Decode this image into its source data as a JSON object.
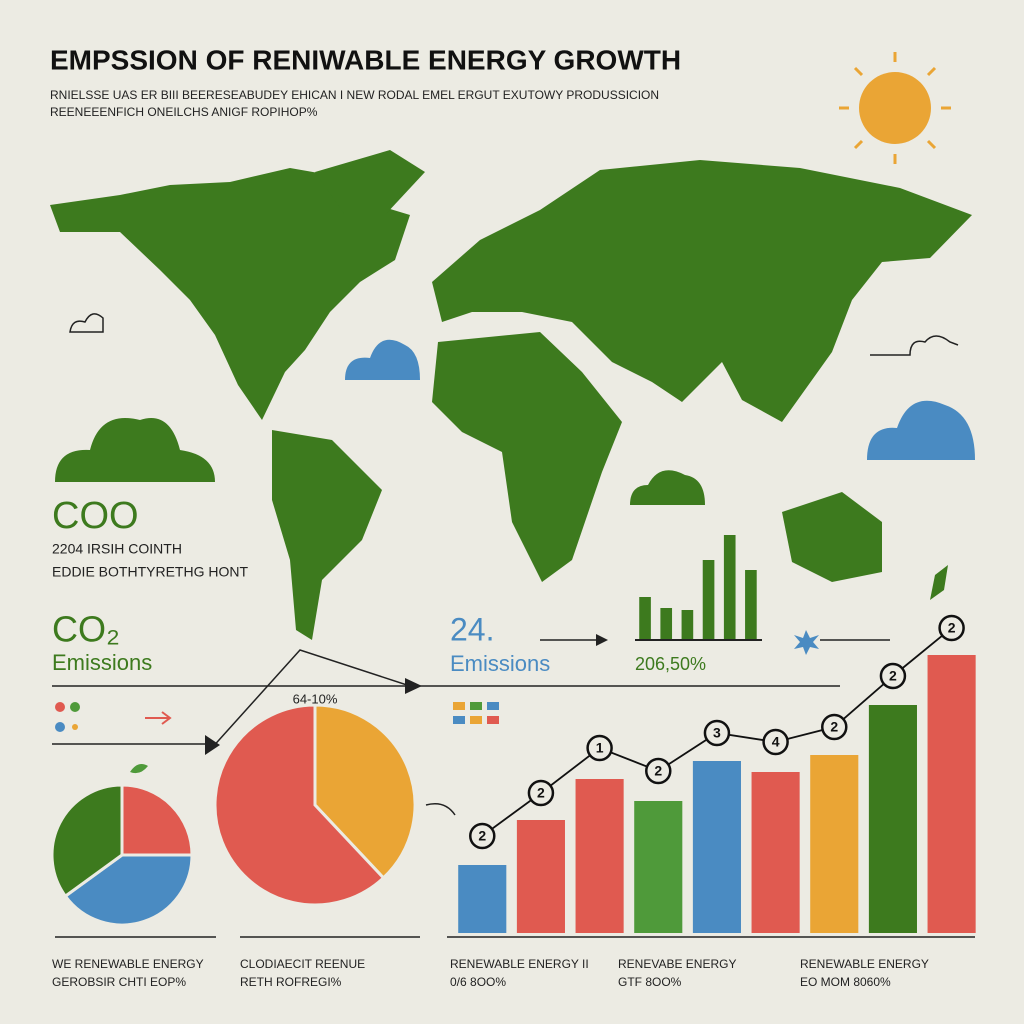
{
  "header": {
    "title": "EMPSSION OF RENIWABLE ENERGY GROWTH",
    "subtitle": [
      "RNIELSSE UAS ER BIII BEERESEABUDEY EHICAN I NEW RODAL EMEL ERGUT EXUTOWY PRODUSSICION",
      "REENEEENFICH ONEILCHS ANIGF ROPIHOP%"
    ]
  },
  "left_panel": {
    "heading": "COO",
    "lines": [
      "2204 IRSIH COINTH",
      "EDDIE BOTHTYRETHG HONT"
    ],
    "co2": "CO₂",
    "emissions": "Emissions"
  },
  "middle_panel": {
    "stat": "24.",
    "emissions": "Emissions",
    "percent": "206,50%"
  },
  "chart_data": [
    {
      "type": "bar",
      "values": [
        43,
        32,
        30,
        80,
        105,
        70
      ],
      "color": "#3d7a1e",
      "ylim": [
        0,
        110
      ]
    },
    {
      "type": "pie",
      "values": [
        25,
        40,
        35
      ],
      "colors": [
        "#e05a50",
        "#4a8bc2",
        "#3d7a1e"
      ]
    },
    {
      "type": "pie",
      "title": "64-10%",
      "values": [
        38,
        62
      ],
      "colors": [
        "#eaa535",
        "#e05a50"
      ]
    },
    {
      "type": "bar_line",
      "ylim": [
        0,
        320
      ],
      "values": [
        68,
        113,
        154,
        132,
        172,
        161,
        178,
        228,
        278
      ],
      "colors": [
        "#4a8bc2",
        "#e05a50",
        "#e05a50",
        "#4f9a3a",
        "#4a8bc2",
        "#e05a50",
        "#eaa535",
        "#3d7a1e",
        "#e05a50"
      ],
      "line_values": [
        97,
        140,
        185,
        162,
        200,
        191,
        206,
        257,
        305
      ],
      "line_labels": [
        "2",
        "2",
        "1",
        "2",
        "3",
        "4",
        "2",
        "2",
        "2"
      ]
    }
  ],
  "footer": [
    [
      "WE RENEWABLE ENERGY",
      "GEROBSIR CHTI EOP%"
    ],
    [
      "CLODIAECIT REENUE",
      "RETH ROFREGI%"
    ],
    [
      "RENEWABLE ENERGY II",
      "0/6 8OO%"
    ],
    [
      "RENEVABE ENERGY",
      "GTF 8OO%"
    ],
    [
      "RENEWABLE ENERGY",
      "EO MOM 8060%"
    ]
  ]
}
